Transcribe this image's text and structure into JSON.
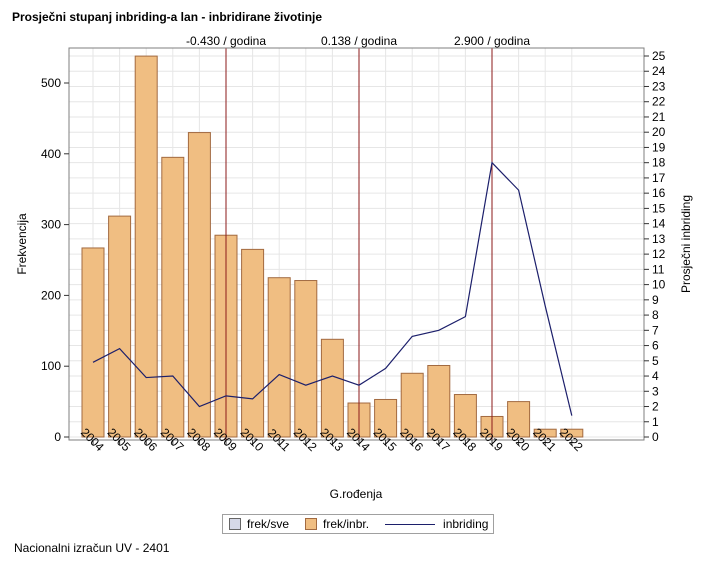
{
  "title": "Prosječni stupanj inbriding-a lan - inbridirane životinje",
  "footer": "Nacionalni izračun UV - 2401",
  "colors": {
    "bar_fill": "#f0be82",
    "bar_stroke": "#a26a40",
    "line": "#1c1f6b",
    "vline": "#8b1a1a",
    "grid": "#e6e6e6",
    "frek_sve": "#d6d9e8"
  },
  "legend": {
    "frek_sve": "frek/sve",
    "frek_inbr": "frek/inbr.",
    "inbriding": "inbriding"
  },
  "chart_data": {
    "type": "bar",
    "xlabel": "G.rođenja",
    "ylabel": "Frekvencija",
    "y2label": "Prosječni inbriding",
    "ylim": [
      0,
      540
    ],
    "y2lim": [
      0,
      25
    ],
    "y_ticks": [
      0,
      100,
      200,
      300,
      400,
      500
    ],
    "y2_ticks": [
      0,
      1,
      2,
      3,
      4,
      5,
      6,
      7,
      8,
      9,
      10,
      11,
      12,
      13,
      14,
      15,
      16,
      17,
      18,
      19,
      20,
      21,
      22,
      23,
      24,
      25
    ],
    "categories": [
      "2004",
      "2005",
      "2006",
      "2007",
      "2008",
      "2009",
      "2010",
      "2011",
      "2012",
      "2013",
      "2014",
      "2015",
      "2016",
      "2017",
      "2018",
      "2019",
      "2020",
      "2021",
      "2022"
    ],
    "series": [
      {
        "name": "frek/inbr.",
        "type": "bar",
        "values": [
          267,
          312,
          538,
          395,
          430,
          285,
          265,
          225,
          221,
          138,
          48,
          53,
          90,
          101,
          60,
          29,
          50,
          11,
          11
        ]
      },
      {
        "name": "inbriding",
        "type": "line",
        "axis": "right",
        "values": [
          4.9,
          5.8,
          3.9,
          4.0,
          2.0,
          2.7,
          2.5,
          4.1,
          3.4,
          4.0,
          3.4,
          4.5,
          6.6,
          7.0,
          7.9,
          18.0,
          16.2,
          8.6,
          1.4
        ]
      }
    ],
    "trend_markers": [
      {
        "at": "2009",
        "label": "-0.430 / godina"
      },
      {
        "at": "2014",
        "label": "0.138 / godina"
      },
      {
        "at": "2019",
        "label": "2.900 / godina"
      }
    ],
    "grid": true,
    "legend_position": "bottom"
  }
}
